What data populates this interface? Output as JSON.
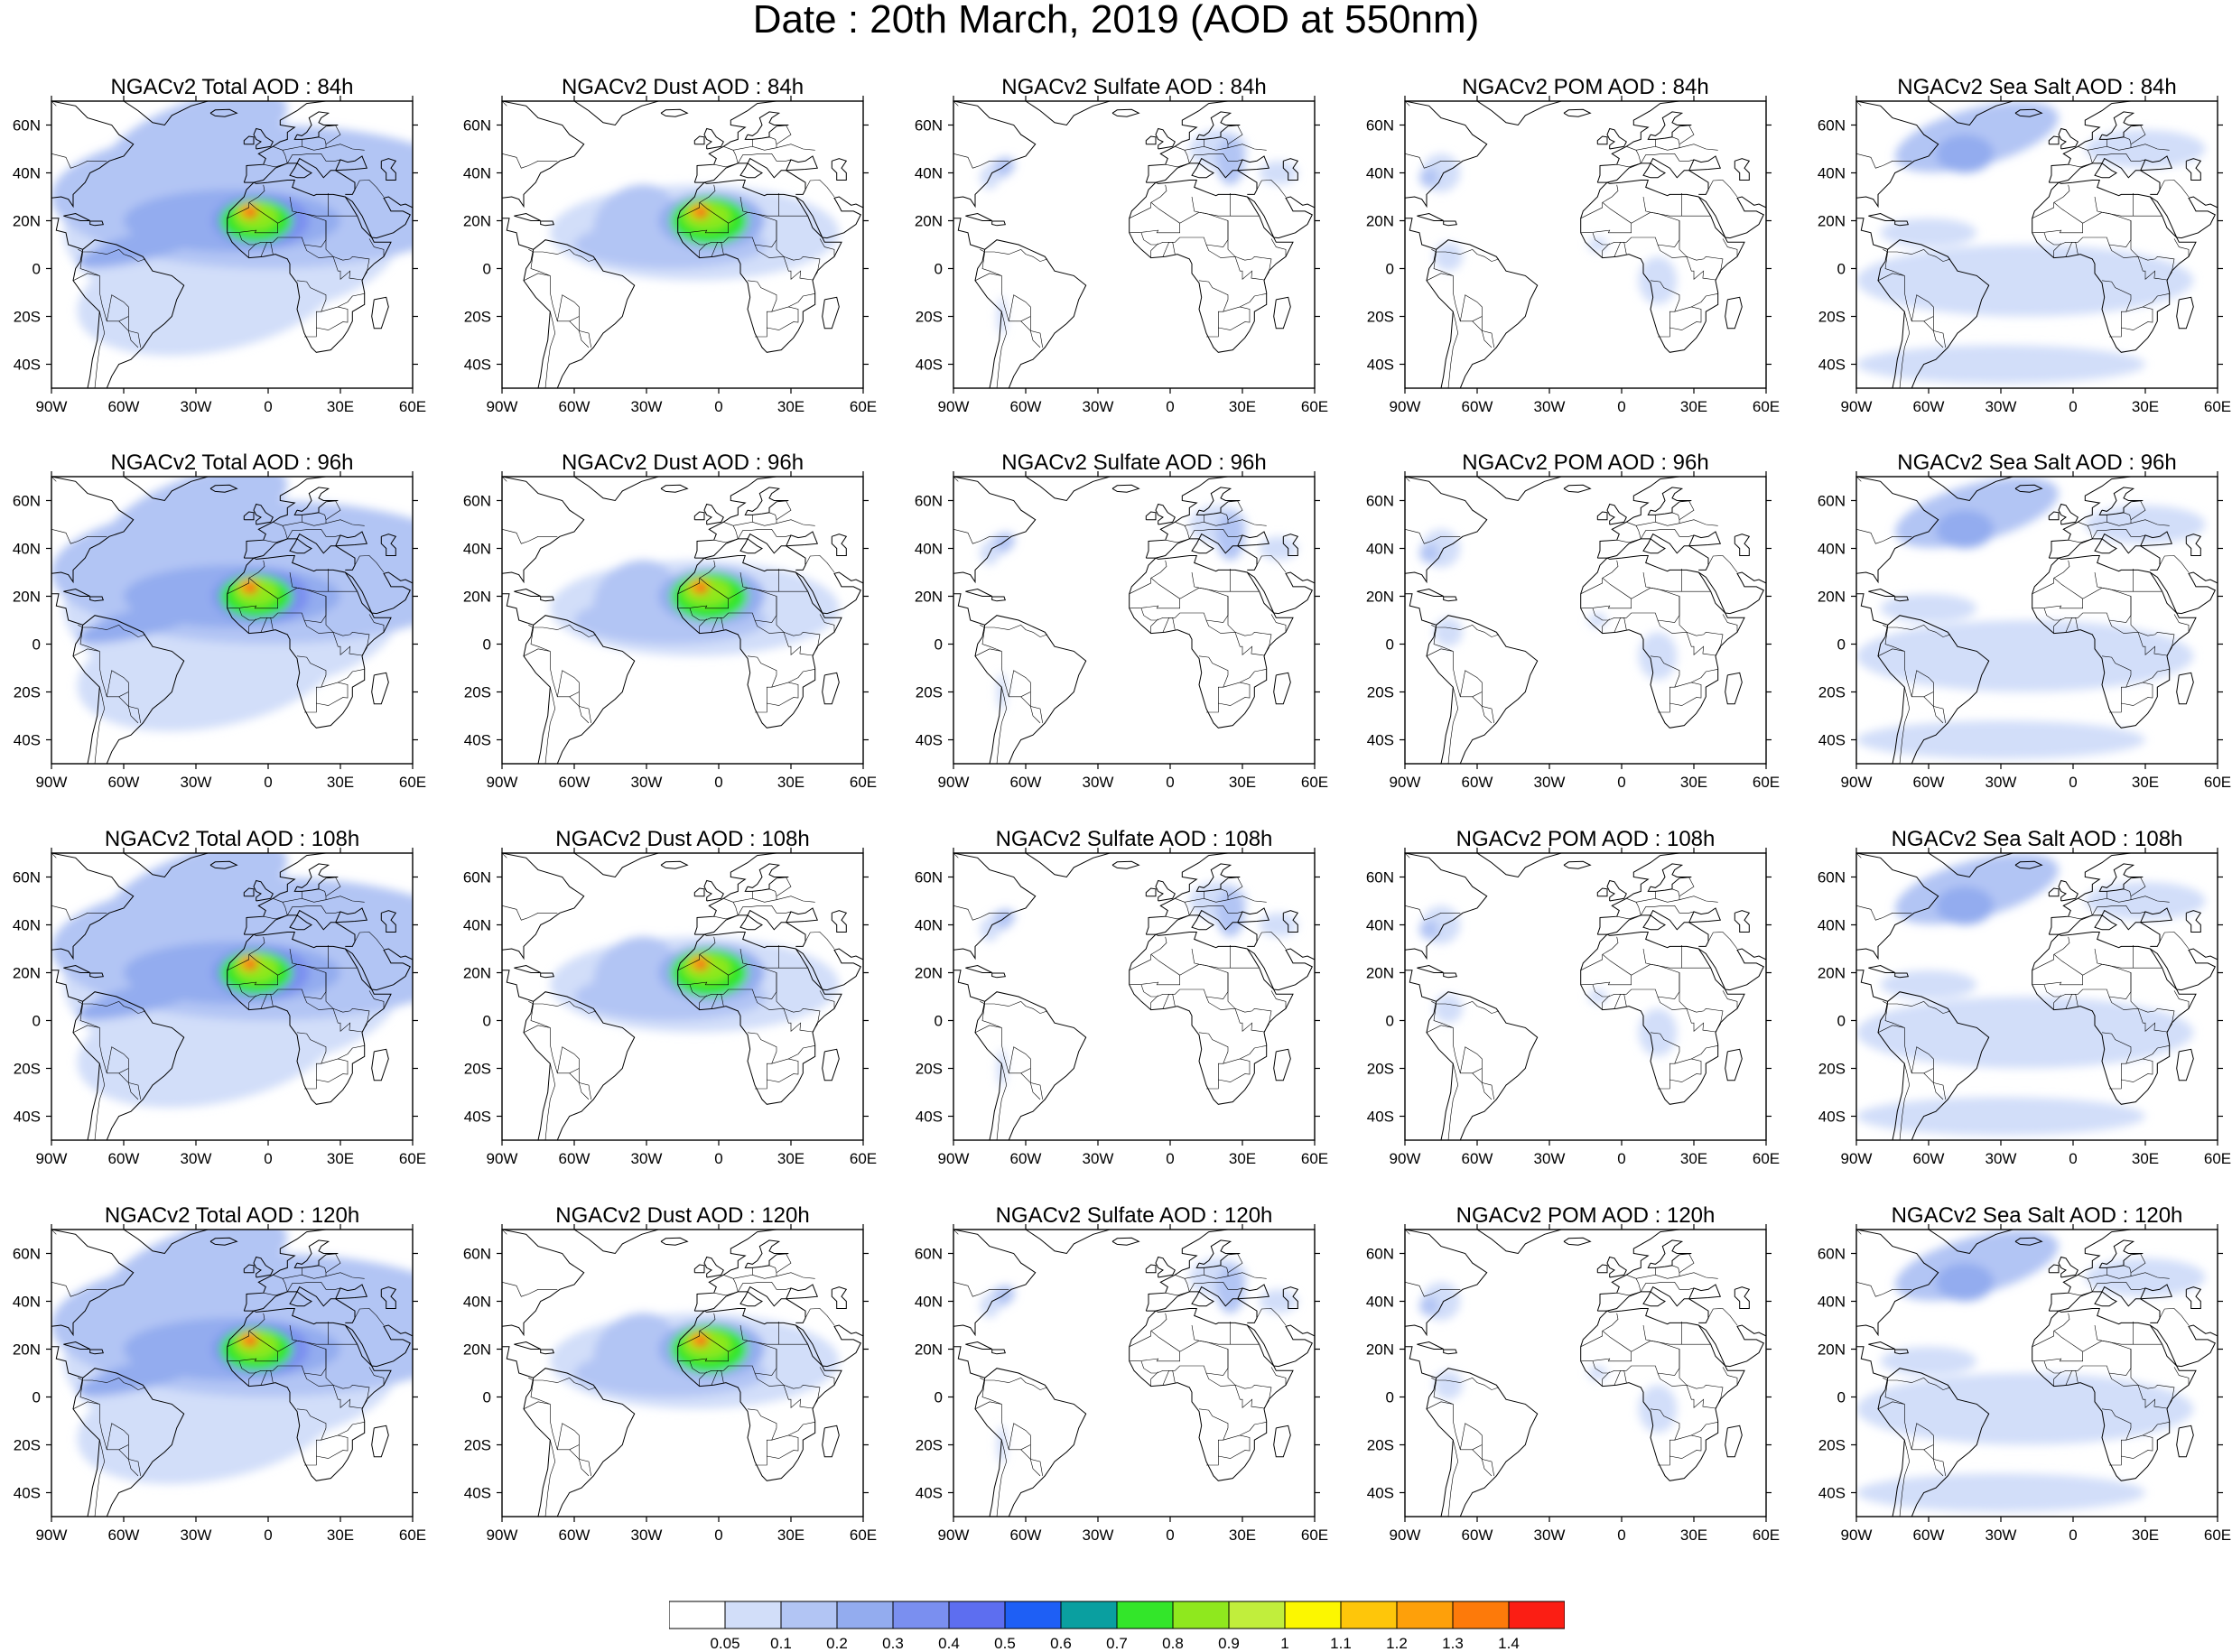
{
  "title": "Date : 20th March, 2019 (AOD at 550nm)",
  "colorbar": {
    "labels": [
      "0.05",
      "0.1",
      "0.2",
      "0.3",
      "0.4",
      "0.5",
      "0.6",
      "0.7",
      "0.8",
      "0.9",
      "1",
      "1.1",
      "1.2",
      "1.3",
      "1.4"
    ],
    "colors": [
      "#ffffff",
      "#d2def9",
      "#b2c5f4",
      "#93acef",
      "#7a8ff0",
      "#5d6ef0",
      "#1e5ff5",
      "#0a9fa0",
      "#33e62a",
      "#8fe81e",
      "#c1ee3c",
      "#fcf700",
      "#fec60a",
      "#fea00a",
      "#fd7a0a",
      "#fb1e14"
    ]
  },
  "map_extent": {
    "lon": [
      -90,
      60
    ],
    "lat": [
      -50,
      70
    ]
  },
  "axis": {
    "lon_ticks": [
      "90W",
      "60W",
      "30W",
      "0",
      "30E",
      "60E"
    ],
    "lat_ticks": [
      "60N",
      "40N",
      "20N",
      "0",
      "20S",
      "40S"
    ]
  },
  "columns": [
    "Total",
    "Dust",
    "Sulfate",
    "POM",
    "Sea Salt"
  ],
  "rows": [
    "84h",
    "96h",
    "108h",
    "120h"
  ],
  "panels": [
    [
      "NGACv2 Total AOD : 84h",
      "NGACv2 Dust AOD : 84h",
      "NGACv2 Sulfate AOD : 84h",
      "NGACv2 POM AOD : 84h",
      "NGACv2 Sea Salt AOD : 84h"
    ],
    [
      "NGACv2 Total AOD : 96h",
      "NGACv2 Dust AOD : 96h",
      "NGACv2 Sulfate AOD : 96h",
      "NGACv2 POM AOD : 96h",
      "NGACv2 Sea Salt AOD : 96h"
    ],
    [
      "NGACv2 Total AOD : 108h",
      "NGACv2 Dust AOD : 108h",
      "NGACv2 Sulfate AOD : 108h",
      "NGACv2 POM AOD : 108h",
      "NGACv2 Sea Salt AOD : 108h"
    ],
    [
      "NGACv2 Total AOD : 120h",
      "NGACv2 Dust AOD : 120h",
      "NGACv2 Sulfate AOD : 120h",
      "NGACv2 POM AOD : 120h",
      "NGACv2 Sea Salt  AOD : 120h"
    ]
  ]
}
